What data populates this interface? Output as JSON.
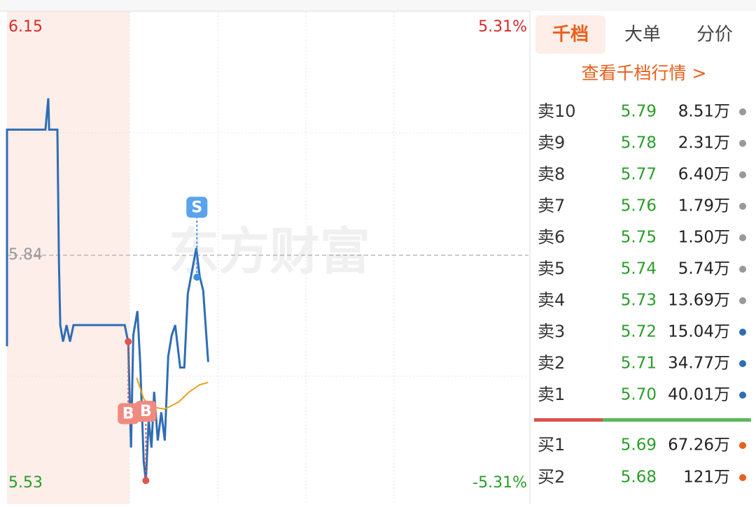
{
  "chart_data": {
    "type": "line",
    "xlim": [
      0,
      240
    ],
    "ylim": [
      5.53,
      6.15
    ],
    "yticks": [
      {
        "value": 6.15,
        "label": "6.15"
      },
      {
        "value": 5.84,
        "label": "5.84"
      },
      {
        "value": 5.53,
        "label": "5.53"
      }
    ],
    "y2lim": [
      -5.31,
      5.31
    ],
    "y2ticks": [
      {
        "value": 5.31,
        "label": "5.31%"
      },
      {
        "value": -5.31,
        "label": "-5.31%"
      }
    ],
    "watermark": "东方财富",
    "series": [
      {
        "name": "price",
        "color": "#2f6db5",
        "x": [
          0,
          0,
          17.7,
          19.0,
          19.4,
          23.2,
          23.9,
          24.5,
          25.8,
          27.4,
          29.0,
          30.6,
          54.2,
          55.8,
          57.1,
          58.1,
          60.0,
          61.3,
          62.9,
          63.9,
          65.2,
          66.5,
          67.7,
          69.4,
          71.0,
          72.6,
          74.2,
          75.8,
          77.4,
          79.7,
          81.6,
          83.2,
          87.1,
          88.7,
          90.3,
          92.6
        ],
        "values": [
          5.724,
          6.0,
          6.0,
          6.04,
          6.0,
          6.0,
          5.831,
          5.751,
          5.73,
          5.751,
          5.73,
          5.751,
          5.751,
          5.729,
          5.595,
          5.738,
          5.769,
          5.702,
          5.577,
          5.552,
          5.631,
          5.595,
          5.666,
          5.604,
          5.64,
          5.604,
          5.711,
          5.738,
          5.751,
          5.697,
          5.697,
          5.791,
          5.849,
          5.813,
          5.795,
          5.704
        ]
      },
      {
        "name": "average",
        "color": "#e8a21a",
        "x": [
          59.7,
          62.9,
          66.1,
          72.6,
          79.0,
          83.9,
          88.7,
          92.6
        ],
        "values": [
          5.684,
          5.657,
          5.647,
          5.644,
          5.653,
          5.666,
          5.675,
          5.678
        ]
      }
    ],
    "markers": [
      {
        "label": "S",
        "x": 87.4,
        "value": 5.812,
        "kind": "sell"
      },
      {
        "label": "B",
        "x": 55.8,
        "value": 5.73,
        "kind": "buy"
      },
      {
        "label": "B",
        "x": 63.9,
        "value": 5.553,
        "kind": "buy"
      }
    ]
  },
  "panel": {
    "tabs": [
      "千档",
      "大单",
      "分价"
    ],
    "link": "查看千档行情 >",
    "asks": [
      {
        "label": "卖10",
        "price": "5.79",
        "volume": "8.51万"
      },
      {
        "label": "卖9",
        "price": "5.78",
        "volume": "2.31万"
      },
      {
        "label": "卖8",
        "price": "5.77",
        "volume": "6.40万"
      },
      {
        "label": "卖7",
        "price": "5.76",
        "volume": "1.79万"
      },
      {
        "label": "卖6",
        "price": "5.75",
        "volume": "1.50万"
      },
      {
        "label": "卖5",
        "price": "5.74",
        "volume": "5.74万"
      },
      {
        "label": "卖4",
        "price": "5.73",
        "volume": "13.69万"
      },
      {
        "label": "卖3",
        "price": "5.72",
        "volume": "15.04万"
      },
      {
        "label": "卖2",
        "price": "5.71",
        "volume": "34.77万"
      },
      {
        "label": "卖1",
        "price": "5.70",
        "volume": "40.01万"
      }
    ],
    "bids": [
      {
        "label": "买1",
        "price": "5.69",
        "volume": "67.26万"
      },
      {
        "label": "买2",
        "price": "5.68",
        "volume": "121万"
      }
    ]
  }
}
